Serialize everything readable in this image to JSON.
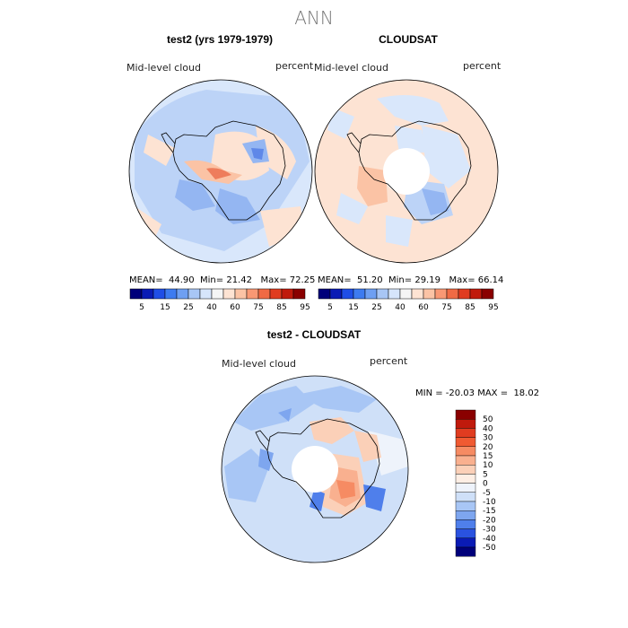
{
  "season": "ANN",
  "panels": [
    {
      "title": "test2 (yrs 1979-1979)",
      "variable": "Mid-level cloud",
      "units": "percent",
      "stats": {
        "mean_label": "MEAN=",
        "mean": "44.90",
        "min_label": "Min=",
        "min": "21.42",
        "max_label": "Max=",
        "max": "72.25"
      }
    },
    {
      "title": "CLOUDSAT",
      "variable": "Mid-level cloud",
      "units": "percent",
      "stats": {
        "mean_label": "MEAN=",
        "mean": "51.20",
        "min_label": "Min=",
        "min": "29.19",
        "max_label": "Max=",
        "max": "66.14"
      }
    }
  ],
  "colorbar": {
    "labels": [
      "5",
      "15",
      "25",
      "40",
      "60",
      "75",
      "85",
      "95"
    ],
    "colors": [
      "#00007a",
      "#0a1bb5",
      "#1f4ee6",
      "#3d7bf0",
      "#6e9ff2",
      "#a8c6f5",
      "#d6e5fb",
      "#f5f5f5",
      "#fde3d3",
      "#fbc3a5",
      "#f99874",
      "#f06a44",
      "#e03c20",
      "#c01a0c",
      "#8a0000"
    ]
  },
  "diff": {
    "title": "test2 - CLOUDSAT",
    "variable": "Mid-level cloud",
    "units": "percent",
    "minmax": "MIN = -20.03 MAX =  18.02",
    "legend_labels": [
      "50",
      "40",
      "30",
      "20",
      "15",
      "10",
      "5",
      "0",
      "-5",
      "-10",
      "-15",
      "-20",
      "-30",
      "-40",
      "-50"
    ],
    "legend_colors": [
      "#8a0000",
      "#c01a0c",
      "#e03c20",
      "#f05a32",
      "#f68b63",
      "#f9b08f",
      "#fbd0b8",
      "#fdeee4",
      "#eef3fb",
      "#cfe0f8",
      "#a8c6f5",
      "#7ea6ef",
      "#4f7feb",
      "#2a52e0",
      "#0a1bb5",
      "#00007a"
    ]
  },
  "map_colors": {
    "ocean_light": "#d9e7fb",
    "ocean_mid": "#bcd3f7",
    "blue_mid": "#94b6f2",
    "blue_dark": "#5f88e8",
    "peach": "#fde3d3",
    "salmon": "#f7b493",
    "red": "#ee7d5c",
    "white": "#ffffff"
  }
}
